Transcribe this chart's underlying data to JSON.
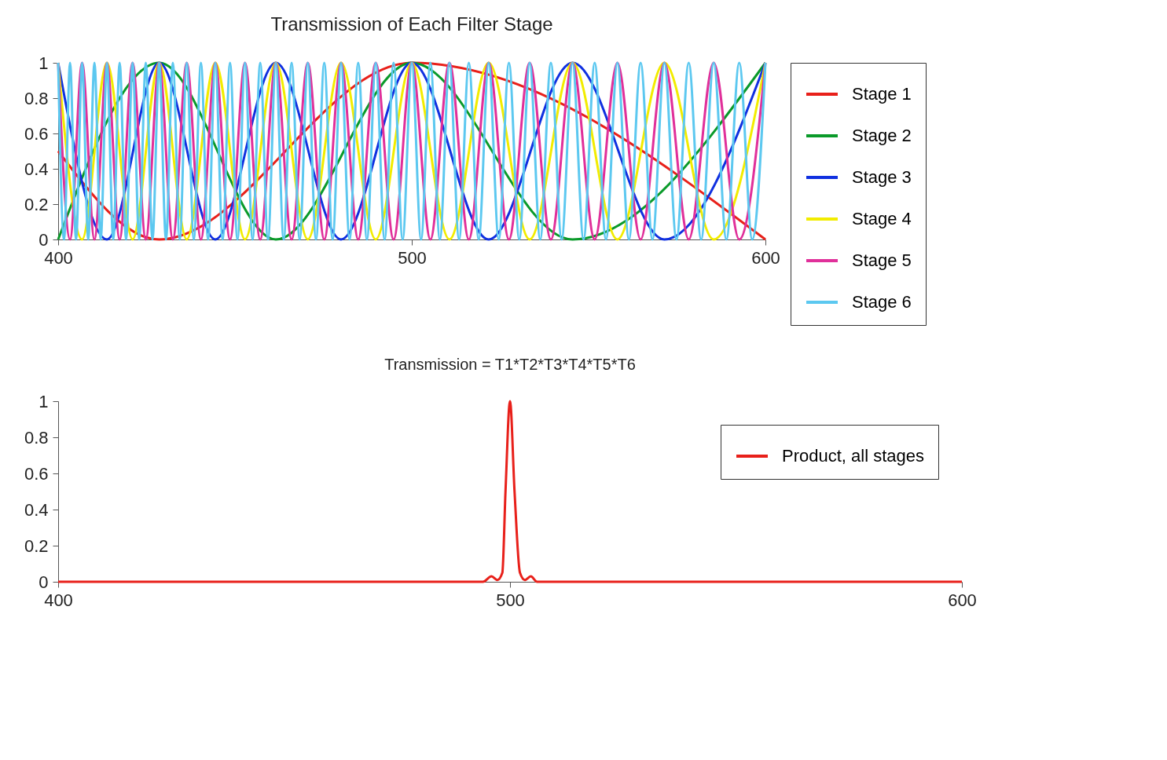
{
  "chart_data": [
    {
      "type": "line",
      "title": "Transmission of Each Filter Stage",
      "xlim": [
        400,
        600
      ],
      "xticks": [
        400,
        500,
        600
      ],
      "ylim": [
        0,
        1
      ],
      "yticks": [
        0,
        0.2,
        0.4,
        0.6,
        0.8,
        1
      ],
      "grid": false,
      "legend": "right",
      "series": [
        {
          "name": "Stage 1",
          "color": "#e8201a",
          "x": [
            400,
            428.57,
            500,
            600
          ],
          "values": [
            0.5,
            0,
            1,
            0
          ]
        },
        {
          "name": "Stage 2",
          "color": "#0a9a2a",
          "x": [
            400,
            428.57,
            461.54,
            500,
            545.45,
            600
          ],
          "values": [
            0,
            1,
            0,
            1,
            0,
            1
          ]
        },
        {
          "name": "Stage 3",
          "color": "#1030e0",
          "x": [
            400,
            413.79,
            428.57,
            444.44,
            461.54,
            480,
            500,
            521.74,
            545.45,
            571.43,
            600
          ],
          "values": [
            1,
            0,
            1,
            0,
            1,
            0,
            1,
            0,
            1,
            0,
            1
          ]
        },
        {
          "name": "Stage 4",
          "color": "#f2ec00",
          "x": [
            400,
            406.78,
            413.79,
            421.05,
            428.57,
            436.36,
            444.44,
            452.83,
            461.54,
            470.59,
            480,
            489.8,
            500,
            510.64,
            521.74,
            533.33,
            545.45,
            558.14,
            571.43,
            585.37,
            600
          ],
          "values": [
            1,
            0,
            1,
            0,
            1,
            0,
            1,
            0,
            1,
            0,
            1,
            0,
            1,
            0,
            1,
            0,
            1,
            0,
            1,
            0,
            1
          ]
        },
        {
          "name": "Stage 5",
          "color": "#e0309a",
          "x": [
            400,
            403.36,
            406.78,
            410.26,
            413.79,
            417.39,
            421.05,
            424.78,
            428.57,
            432.43,
            436.36,
            440.37,
            444.44,
            448.6,
            452.83,
            457.14,
            461.54,
            466.02,
            470.59,
            475.25,
            480,
            484.85,
            489.8,
            494.85,
            500,
            505.26,
            510.64,
            516.13,
            521.74,
            527.47,
            533.33,
            539.33,
            545.45,
            551.72,
            558.14,
            564.71,
            571.43,
            578.31,
            585.37,
            592.59,
            600
          ],
          "values": [
            1,
            0,
            1,
            0,
            1,
            0,
            1,
            0,
            1,
            0,
            1,
            0,
            1,
            0,
            1,
            0,
            1,
            0,
            1,
            0,
            1,
            0,
            1,
            0,
            1,
            0,
            1,
            0,
            1,
            0,
            1,
            0,
            1,
            0,
            1,
            0,
            1,
            0,
            1,
            0,
            1
          ]
        },
        {
          "name": "Stage 6",
          "color": "#5cc8f0",
          "x": [
            400,
            401.67,
            403.36,
            405.06,
            406.78,
            408.51,
            410.26,
            412.02,
            413.79,
            415.58,
            417.39,
            419.21,
            421.05,
            422.91,
            424.78,
            426.67,
            428.57,
            430.49,
            432.43,
            434.39,
            436.36,
            438.36,
            440.37,
            442.4,
            444.44,
            446.51,
            448.6,
            450.7,
            452.83,
            454.98,
            457.14,
            459.33,
            461.54,
            463.77,
            466.02,
            468.29,
            470.59,
            472.91,
            475.25,
            477.61,
            480,
            482.41,
            484.85,
            487.31,
            489.8,
            492.31,
            494.85,
            497.41,
            500,
            502.62,
            505.26,
            507.94,
            510.64,
            513.37,
            516.13,
            518.92,
            521.74,
            524.59,
            527.47,
            530.39,
            533.33,
            536.31,
            539.33,
            542.37,
            545.45,
            548.57,
            551.72,
            554.91,
            558.14,
            561.4,
            564.71,
            568.05,
            571.43,
            574.85,
            578.31,
            581.82,
            585.37,
            588.96,
            592.59,
            596.27,
            600
          ],
          "values": [
            1,
            0,
            1,
            0,
            1,
            0,
            1,
            0,
            1,
            0,
            1,
            0,
            1,
            0,
            1,
            0,
            1,
            0,
            1,
            0,
            1,
            0,
            1,
            0,
            1,
            0,
            1,
            0,
            1,
            0,
            1,
            0,
            1,
            0,
            1,
            0,
            1,
            0,
            1,
            0,
            1,
            0,
            1,
            0,
            1,
            0,
            1,
            0,
            1,
            0,
            1,
            0,
            1,
            0,
            1,
            0,
            1,
            0,
            1,
            0,
            1,
            0,
            1,
            0,
            1,
            0,
            1,
            0,
            1,
            0,
            1,
            0,
            1,
            0,
            1,
            0,
            1,
            0,
            1,
            0,
            1
          ]
        }
      ]
    },
    {
      "type": "line",
      "title": "Transmission = T1*T2*T3*T4*T5*T6",
      "xlim": [
        400,
        600
      ],
      "xticks": [
        400,
        500,
        600
      ],
      "ylim": [
        0,
        1
      ],
      "yticks": [
        0,
        0.2,
        0.4,
        0.6,
        0.8,
        1
      ],
      "grid": false,
      "legend": "top right",
      "series": [
        {
          "name": "Product, all stages",
          "color": "#e8201a",
          "x": [
            400,
            494,
            495.9,
            497.2,
            498.3,
            499,
            500,
            501,
            502.2,
            503.3,
            504.6,
            506,
            600
          ],
          "values": [
            0,
            0,
            0.03,
            0.01,
            0.05,
            0.5,
            1,
            0.5,
            0.05,
            0.01,
            0.03,
            0,
            0
          ]
        }
      ]
    }
  ]
}
